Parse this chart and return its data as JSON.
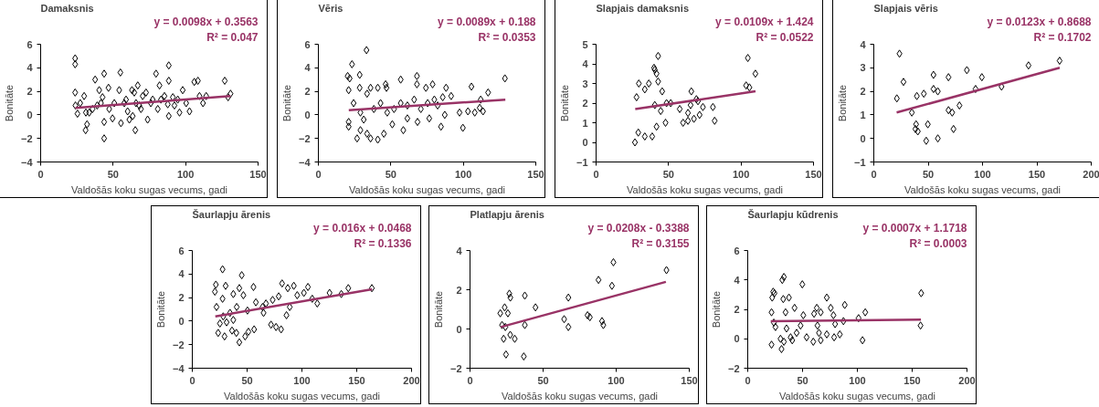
{
  "chart_data": [
    {
      "type": "scatter",
      "title": "Damaksnis",
      "xlabel": "Valdošās koku sugas vecums, gadi",
      "ylabel": "Bonitāte",
      "xlim": [
        0,
        150
      ],
      "ylim": [
        -4,
        6
      ],
      "xticks": [
        0,
        50,
        100,
        150
      ],
      "yticks": [
        -4,
        -2,
        0,
        2,
        4,
        6
      ],
      "grid": false,
      "annotations": [
        "y = 0.0098x + 0.3563",
        "R² = 0.047"
      ],
      "series": [
        {
          "marker": "diamond",
          "color": "#000000",
          "x": [
            23.8,
            23.8,
            23.8,
            24,
            25.4,
            30,
            31,
            32,
            37.6,
            39,
            40.4,
            42.7,
            43.8,
            43.8,
            43.8,
            46.8,
            49.6,
            50.8,
            54.2,
            55,
            55.4,
            57.7,
            60,
            63,
            63.5,
            65.3,
            65.8,
            67,
            69.2,
            70.4,
            73.8,
            76,
            79.6,
            80.8,
            82,
            83,
            87.7,
            88.4,
            88.4,
            88.4,
            91.2,
            94.6,
            95.8,
            98,
            100.4,
            102.7,
            106,
            108.5,
            109.6,
            112,
            114.2,
            127,
            129.3,
            131,
            27.3,
            33.5,
            35.8,
            41.6,
            47.3,
            58.9,
            61.2,
            68,
            64.6,
            72.7,
            77.3,
            85.4,
            92.3,
            31.2
          ],
          "values": [
            4.8,
            4.3,
            1.9,
            0.8,
            0.1,
            1.6,
            -1.3,
            -0.8,
            3.0,
            0.8,
            2.1,
            1.5,
            3.5,
            -2.0,
            -0.6,
            2.3,
            -0.3,
            1.0,
            2.1,
            3.6,
            -0.7,
            1.0,
            0.3,
            2.1,
            -0.1,
            -1.3,
            1.0,
            2.5,
            0.5,
            1.6,
            -0.4,
            1.0,
            3.5,
            0.5,
            2.5,
            1.3,
            0.9,
            4.2,
            2.9,
            -0.1,
            1.5,
            1.3,
            0.2,
            2.1,
            1.0,
            0.3,
            2.8,
            2.9,
            1.6,
            1.0,
            1.6,
            2.9,
            1.5,
            1.8,
            1.0,
            0.2,
            0.5,
            1.0,
            0.5,
            1.3,
            -0.4,
            0.8,
            1.9,
            1.9,
            1.3,
            1.6,
            0.8,
            0.2
          ]
        },
        {
          "type": "line",
          "color": "#993366",
          "x": [
            24,
            131
          ],
          "values": [
            0.6,
            1.6
          ]
        }
      ]
    },
    {
      "type": "scatter",
      "title": "Vēris",
      "xlabel": "Valdošās koku sugas vecums, gadi",
      "ylabel": "Bonitāte",
      "xlim": [
        0,
        150
      ],
      "ylim": [
        -4,
        6
      ],
      "xticks": [
        0,
        50,
        100,
        150
      ],
      "yticks": [
        -4,
        -2,
        0,
        2,
        4,
        6
      ],
      "grid": false,
      "annotations": [
        "y = 0.0089x + 0.188",
        "R² = 0.0353"
      ],
      "series": [
        {
          "marker": "diamond",
          "color": "#000000",
          "x": [
            33.2,
            23.2,
            20.2,
            21.6,
            28.5,
            20.9,
            28.5,
            36,
            41,
            46.4,
            47,
            33.6,
            26.7,
            20.9,
            20.9,
            29,
            33.6,
            36,
            41,
            45.2,
            51,
            56.8,
            58.6,
            61.4,
            68,
            68,
            68.4,
            74.2,
            76.5,
            78.8,
            84.6,
            88.1,
            91.6,
            87.2,
            97.4,
            99.7,
            103.2,
            105.6,
            107.9,
            111.3,
            112,
            113.6,
            117.1,
            128.7,
            24.3,
            29,
            38.3,
            42.9,
            52.2,
            56.8,
            61.4,
            66.1,
            70.7,
            75.4,
            80,
            82.3,
            85.8,
            47.5,
            31.3
          ],
          "values": [
            5.5,
            4.3,
            3.3,
            3.1,
            3.4,
            2.1,
            2.3,
            2.3,
            2.3,
            2.6,
            2.3,
            1.8,
            -2.0,
            -1.0,
            -0.6,
            -1.3,
            -1.6,
            -2.0,
            -2.1,
            -1.6,
            -0.8,
            3.0,
            -1.3,
            -0.3,
            3.3,
            2.6,
            -0.6,
            2.3,
            -0.3,
            2.6,
            -1.0,
            2.3,
            1.6,
            0.0,
            0.2,
            -1.1,
            0.3,
            2.4,
            0.2,
            0.6,
            1.3,
            0.3,
            1.9,
            3.1,
            1.0,
            0.2,
            0.5,
            1.0,
            0.5,
            1.0,
            0.8,
            1.3,
            0.5,
            1.0,
            1.3,
            0.8,
            1.5,
            0.2,
            -0.4
          ]
        },
        {
          "type": "line",
          "color": "#993366",
          "x": [
            21,
            129
          ],
          "values": [
            0.4,
            1.3
          ]
        }
      ]
    },
    {
      "type": "scatter",
      "title": "Slapjais damaksnis",
      "xlabel": "Valdošās koku sugas vecums, gadi",
      "ylabel": "Bonitāte",
      "xlim": [
        0,
        150
      ],
      "ylim": [
        -1,
        5
      ],
      "xticks": [
        0,
        50,
        100,
        150
      ],
      "yticks": [
        -1,
        0,
        1,
        2,
        3,
        4,
        5
      ],
      "grid": false,
      "annotations": [
        "y = 0.0109x + 1.424",
        "R² = 0.0522"
      ],
      "series": [
        {
          "marker": "diamond",
          "color": "#000000",
          "x": [
            26.8,
            27.9,
            29.1,
            29.5,
            33.6,
            33.6,
            36.4,
            38.7,
            40,
            40.5,
            40.5,
            41.7,
            41.7,
            42.8,
            42.8,
            44.6,
            45.6,
            47.9,
            48.6,
            51.5,
            57.7,
            60,
            63.4,
            63.4,
            65.7,
            65.2,
            67.5,
            69.2,
            70.3,
            71.4,
            73.7,
            80.6,
            81.8,
            103.5,
            104.7,
            105.8,
            109.9
          ],
          "values": [
            0.0,
            2.3,
            0.5,
            3.0,
            0.3,
            2.7,
            3.0,
            0.3,
            3.8,
            3.7,
            1.9,
            0.8,
            3.5,
            3.1,
            4.4,
            1.6,
            2.6,
            1.0,
            2.0,
            2.0,
            1.7,
            1.0,
            1.1,
            1.5,
            2.6,
            1.9,
            1.2,
            2.2,
            2.1,
            1.4,
            1.8,
            1.8,
            1.1,
            2.9,
            4.3,
            2.8,
            3.5
          ]
        },
        {
          "type": "line",
          "color": "#993366",
          "x": [
            27,
            110
          ],
          "values": [
            1.7,
            2.6
          ]
        }
      ]
    },
    {
      "type": "scatter",
      "title": "Slapjais vēris",
      "xlabel": "Valdošās koku sugas vecums, gadi",
      "ylabel": "Bonitāte",
      "xlim": [
        0,
        200
      ],
      "ylim": [
        -1,
        4
      ],
      "xticks": [
        0,
        50,
        100,
        150,
        200
      ],
      "yticks": [
        -1,
        0,
        1,
        2,
        3,
        4
      ],
      "grid": false,
      "annotations": [
        "y = 0.0123x + 0.8688",
        "R² = 0.1702"
      ],
      "series": [
        {
          "marker": "diamond",
          "color": "#000000",
          "x": [
            21.2,
            23.6,
            27.3,
            35,
            38.3,
            38.9,
            39.6,
            40.5,
            46,
            48.2,
            49.7,
            54.9,
            54.9,
            58.9,
            58.9,
            68.7,
            68.7,
            72.1,
            73.3,
            78.8,
            85.6,
            93.6,
            99.4,
            117.5,
            142.3,
            170.9
          ],
          "values": [
            1.7,
            3.6,
            2.4,
            1.1,
            0.4,
            0.6,
            1.8,
            0.3,
            1.9,
            -0.1,
            0.6,
            2.7,
            2.1,
            2.0,
            0.0,
            2.6,
            1.2,
            1.1,
            0.4,
            1.4,
            2.9,
            2.1,
            2.6,
            2.2,
            3.1,
            3.3
          ]
        },
        {
          "type": "line",
          "color": "#993366",
          "x": [
            21,
            171
          ],
          "values": [
            1.1,
            3.0
          ]
        }
      ]
    },
    {
      "type": "scatter",
      "title": "Šaurlapju ārenis",
      "xlabel": "Valdošās koku sugas vecums, gadi",
      "ylabel": "Bonitāte",
      "xlim": [
        0,
        200
      ],
      "ylim": [
        -4,
        6
      ],
      "xticks": [
        0,
        50,
        100,
        150,
        200
      ],
      "yticks": [
        -4,
        -2,
        0,
        2,
        4,
        6
      ],
      "grid": false,
      "annotations": [
        "y = 0.016x + 0.0468",
        "R² = 0.1336"
      ],
      "series": [
        {
          "marker": "diamond",
          "color": "#000000",
          "x": [
            27.6,
            21.5,
            30.4,
            45.1,
            42.9,
            55.8,
            20.6,
            27.6,
            37.4,
            46.6,
            22.1,
            28.2,
            23.6,
            29.4,
            36.2,
            40.2,
            42.9,
            48.2,
            51.2,
            56.4,
            34.4,
            40.5,
            50.3,
            58,
            64.1,
            67.2,
            73.3,
            71.8,
            76.4,
            81,
            81.9,
            78.8,
            85.9,
            87.1,
            88.9,
            92.6,
            95.7,
            101.8,
            105.5,
            109.4,
            114,
            125.2,
            135.9,
            142.3,
            163.8,
            25.2,
            31.3,
            37.4,
            65
          ],
          "values": [
            4.4,
            3.1,
            3.0,
            3.9,
            2.8,
            2.9,
            2.5,
            1.9,
            2.3,
            2.2,
            1.2,
            0.4,
            -1.0,
            -1.3,
            -0.8,
            -1.0,
            -1.8,
            -1.3,
            -0.9,
            -0.7,
            0.7,
            1.2,
            0.9,
            1.6,
            1.2,
            1.5,
            1.8,
            -0.3,
            -0.5,
            -0.7,
            3.2,
            2.1,
            0.5,
            2.8,
            1.2,
            3.0,
            2.2,
            2.4,
            2.9,
            1.9,
            1.5,
            2.4,
            2.3,
            2.8,
            2.8,
            -0.2,
            -0.1,
            0.1,
            0.7
          ]
        },
        {
          "type": "line",
          "color": "#993366",
          "x": [
            21,
            164
          ],
          "values": [
            0.4,
            2.7
          ]
        }
      ]
    },
    {
      "type": "scatter",
      "title": "Platlapju ārenis",
      "xlabel": "Valdošās koku sugas vecums, gadi",
      "ylabel": "Bonitāte",
      "xlim": [
        0,
        150
      ],
      "ylim": [
        -2,
        4
      ],
      "xticks": [
        0,
        50,
        100,
        150
      ],
      "yticks": [
        -2,
        0,
        2,
        4
      ],
      "grid": false,
      "annotations": [
        "y = 0.0208x - 0.3388",
        "R² = 0.3155"
      ],
      "series": [
        {
          "marker": "diamond",
          "color": "#000000",
          "x": [
            20.7,
            23.7,
            21.9,
            24.2,
            23,
            25.9,
            26.9,
            27.6,
            24.6,
            27.5,
            30.6,
            36.8,
            37.5,
            37.5,
            44.8,
            67.3,
            64.4,
            67.3,
            80.4,
            82,
            90.3,
            91.2,
            87.9,
            97.1,
            98.1,
            134.4
          ],
          "values": [
            0.8,
            1.1,
            0.2,
            0.1,
            -0.5,
            0.8,
            1.8,
            1.6,
            -1.3,
            -0.3,
            -0.5,
            -1.4,
            1.7,
            0.2,
            1.1,
            1.6,
            0.5,
            0.1,
            0.7,
            0.6,
            0.4,
            0.2,
            2.5,
            2.2,
            3.4,
            3.0
          ]
        },
        {
          "type": "line",
          "color": "#993366",
          "x": [
            21,
            134
          ],
          "values": [
            0.1,
            2.4
          ]
        }
      ]
    },
    {
      "type": "scatter",
      "title": "Šaurlapju kūdrenis",
      "xlabel": "Valdošās koku sugas vecums, gadi",
      "ylabel": "Bonitāte",
      "xlim": [
        0,
        200
      ],
      "ylim": [
        -2,
        6
      ],
      "xticks": [
        0,
        50,
        100,
        150,
        200
      ],
      "yticks": [
        -2,
        0,
        2,
        4,
        6
      ],
      "grid": false,
      "annotations": [
        "y = 0.0007x + 1.1718",
        "R² = 0.0003"
      ],
      "series": [
        {
          "marker": "diamond",
          "color": "#000000",
          "x": [
            21.7,
            21.7,
            22.3,
            23.2,
            24.4,
            23.8,
            25.3,
            29.9,
            30.8,
            31.5,
            33,
            32.4,
            34.5,
            33,
            35.4,
            37.6,
            39.1,
            40.6,
            42.7,
            44.6,
            48.2,
            49.8,
            50.7,
            53.7,
            59.8,
            60.5,
            63,
            63.6,
            65,
            66.6,
            66.6,
            72.1,
            72.1,
            75.7,
            78.2,
            79.7,
            78.8,
            84,
            88.5,
            87.3,
            101.1,
            104.7,
            107.2,
            158.2,
            157.6
          ],
          "values": [
            -0.4,
            1.8,
            2.8,
            3.2,
            3.1,
            1.1,
            0.8,
            0.0,
            -0.7,
            4.0,
            4.2,
            2.7,
            1.8,
            -0.2,
            0.7,
            2.8,
            0.1,
            -0.1,
            2.1,
            0.4,
            0.9,
            3.7,
            1.6,
            0.1,
            -0.2,
            1.7,
            2.1,
            0.9,
            0.4,
            -0.1,
            1.8,
            2.8,
            0.3,
            2.1,
            1.6,
            1.0,
            0.1,
            0.3,
            2.3,
            1.2,
            1.4,
            -0.1,
            1.8,
            3.1,
            0.9
          ]
        },
        {
          "type": "line",
          "color": "#993366",
          "x": [
            21,
            158
          ],
          "values": [
            1.2,
            1.3
          ]
        }
      ]
    }
  ]
}
